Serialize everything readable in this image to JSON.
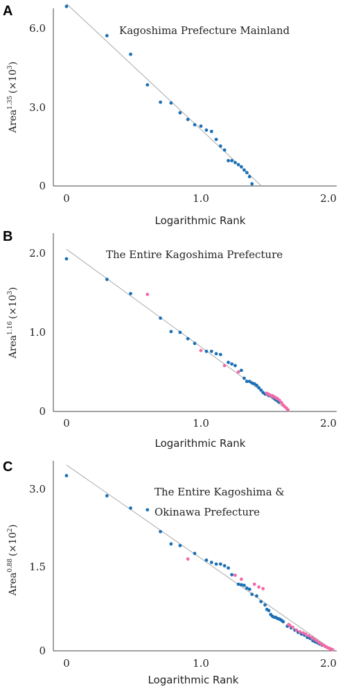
{
  "chart_data": [
    {
      "panel": "A",
      "type": "scatter",
      "annotation": [
        "Kagoshima Prefecture Mainland"
      ],
      "xlabel": "Logarithmic Rank",
      "ylabel": "Area",
      "ylabel_exp": "1.35",
      "ylabel_unit_pre": "(×10",
      "ylabel_unit_exp": "3",
      "ylabel_unit_post": ")",
      "xticks": [
        "0",
        "1.0",
        "2.0"
      ],
      "yticks": [
        "0",
        "3.0",
        "6.0"
      ],
      "xlim": [
        -0.18,
        2.13
      ],
      "ylim": [
        0,
        6.8
      ],
      "grid": false,
      "fit_line": {
        "x": [
          0.0,
          1.45
        ],
        "y": [
          6.85,
          0.0
        ]
      },
      "series": [
        {
          "color": "#1a6fb5",
          "x": [
            0.0,
            0.301,
            0.477,
            0.602,
            0.699,
            0.778,
            0.845,
            0.903,
            0.954,
            1.0,
            1.041,
            1.079,
            1.114,
            1.146,
            1.176,
            1.204,
            1.23,
            1.255,
            1.279,
            1.301,
            1.322,
            1.342,
            1.362,
            1.38
          ],
          "y": [
            6.75,
            5.65,
            4.95,
            3.8,
            3.15,
            3.12,
            2.75,
            2.5,
            2.3,
            2.25,
            2.1,
            2.05,
            1.75,
            1.5,
            1.35,
            0.95,
            0.95,
            0.88,
            0.8,
            0.72,
            0.6,
            0.5,
            0.35,
            0.08
          ]
        }
      ]
    },
    {
      "panel": "B",
      "type": "scatter",
      "annotation": [
        "The Entire Kagoshima Prefecture"
      ],
      "xlabel": "Logarithmic Rank",
      "ylabel": "Area",
      "ylabel_exp": "1.16",
      "ylabel_unit_pre": "(×10",
      "ylabel_unit_exp": "3",
      "ylabel_unit_post": ")",
      "xticks": [
        "0",
        "1.0",
        "2.0"
      ],
      "yticks": [
        "0",
        "1.0",
        "2.0"
      ],
      "xlim": [
        -0.18,
        2.13
      ],
      "ylim": [
        0,
        2.15
      ],
      "grid": false,
      "fit_line": {
        "x": [
          0.0,
          1.66
        ],
        "y": [
          2.05,
          0.0
        ]
      },
      "series": [
        {
          "color": "#1a6fb5",
          "x": [
            0.0,
            0.301,
            0.477,
            0.699,
            0.778,
            0.845,
            0.903,
            0.954,
            1.041,
            1.079,
            1.114,
            1.146,
            1.204,
            1.23,
            1.255,
            1.301,
            1.322,
            1.342,
            1.362,
            1.38,
            1.398,
            1.415,
            1.431,
            1.447,
            1.462,
            1.477,
            1.491,
            1.505,
            1.519,
            1.531,
            1.544,
            1.556,
            1.568,
            1.58
          ],
          "y": [
            1.93,
            1.67,
            1.49,
            1.18,
            1.01,
            1.0,
            0.92,
            0.86,
            0.76,
            0.76,
            0.73,
            0.72,
            0.62,
            0.6,
            0.58,
            0.52,
            0.42,
            0.38,
            0.38,
            0.36,
            0.35,
            0.33,
            0.3,
            0.27,
            0.24,
            0.22,
            0.22,
            0.2,
            0.2,
            0.19,
            0.17,
            0.15,
            0.14,
            0.12
          ]
        },
        {
          "color": "#f06aa8",
          "x": [
            0.602,
            1.0,
            1.176,
            1.279,
            1.49,
            1.5,
            1.51,
            1.52,
            1.53,
            1.54,
            1.55,
            1.56,
            1.57,
            1.585,
            1.6,
            1.612,
            1.625,
            1.637,
            1.648
          ],
          "y": [
            1.48,
            0.77,
            0.58,
            0.5,
            0.23,
            0.22,
            0.21,
            0.2,
            0.2,
            0.19,
            0.18,
            0.17,
            0.16,
            0.14,
            0.11,
            0.08,
            0.06,
            0.04,
            0.02
          ]
        }
      ]
    },
    {
      "panel": "C",
      "type": "scatter",
      "annotation": [
        "The Entire Kagoshima &",
        "Okinawa Prefecture"
      ],
      "xlabel": "Logarithmic Rank",
      "ylabel": "Area",
      "ylabel_exp": "0.88",
      "ylabel_unit_pre": "(×10",
      "ylabel_unit_exp": "2",
      "ylabel_unit_post": ")",
      "xticks": [
        "0",
        "1.0",
        "2.0"
      ],
      "yticks": [
        "0",
        "1.5",
        "3.0"
      ],
      "xlim": [
        -0.12,
        2.13
      ],
      "ylim": [
        0,
        3.4
      ],
      "grid": false,
      "fit_line": {
        "x": [
          0.0,
          1.99
        ],
        "y": [
          3.32,
          0.0
        ]
      },
      "series": [
        {
          "color": "#1a6fb5",
          "x": [
            0.0,
            0.301,
            0.477,
            0.602,
            0.699,
            0.778,
            0.845,
            0.954,
            1.041,
            1.079,
            1.114,
            1.146,
            1.176,
            1.204,
            1.23,
            1.279,
            1.301,
            1.322,
            1.342,
            1.362,
            1.38,
            1.415,
            1.447,
            1.477,
            1.491,
            1.505,
            1.519,
            1.531,
            1.544,
            1.556,
            1.568,
            1.58,
            1.591,
            1.602,
            1.613,
            1.643,
            1.672,
            1.699,
            1.724,
            1.748,
            1.771,
            1.792,
            1.813,
            1.833,
            1.851,
            1.869,
            1.886,
            1.903
          ],
          "y": [
            3.13,
            2.77,
            2.55,
            2.52,
            2.13,
            1.91,
            1.88,
            1.74,
            1.62,
            1.58,
            1.55,
            1.55,
            1.52,
            1.48,
            1.36,
            1.19,
            1.18,
            1.17,
            1.12,
            1.1,
            1.01,
            0.98,
            0.88,
            0.82,
            0.74,
            0.72,
            0.65,
            0.62,
            0.6,
            0.6,
            0.58,
            0.57,
            0.56,
            0.54,
            0.52,
            0.44,
            0.41,
            0.37,
            0.33,
            0.3,
            0.28,
            0.24,
            0.22,
            0.18,
            0.16,
            0.14,
            0.12,
            0.1
          ]
        },
        {
          "color": "#f06aa8",
          "x": [
            0.903,
            1.255,
            1.301,
            1.398,
            1.431,
            1.462,
            1.653,
            1.663,
            1.683,
            1.71,
            1.736,
            1.76,
            1.78,
            1.802,
            1.824,
            1.842,
            1.86,
            1.878,
            1.895,
            1.91,
            1.925,
            1.94,
            1.95,
            1.96,
            1.97,
            1.98
          ],
          "y": [
            1.64,
            1.35,
            1.28,
            1.19,
            1.14,
            1.11,
            0.47,
            0.45,
            0.42,
            0.37,
            0.34,
            0.32,
            0.3,
            0.27,
            0.24,
            0.21,
            0.18,
            0.15,
            0.12,
            0.1,
            0.08,
            0.06,
            0.05,
            0.04,
            0.03,
            0.02
          ]
        }
      ]
    }
  ]
}
